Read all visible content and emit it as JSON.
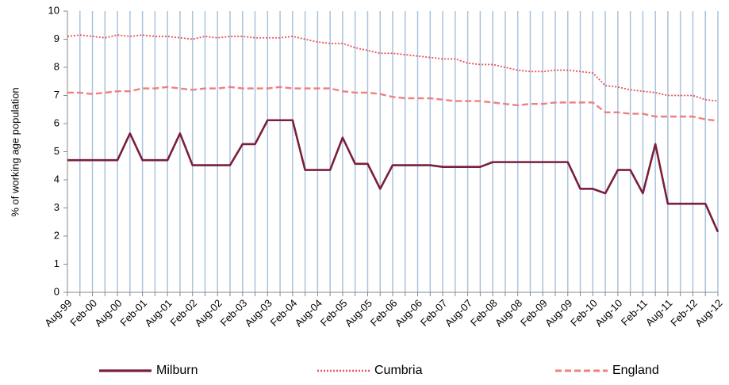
{
  "chart_data": {
    "type": "line",
    "ylabel": "% of working age population",
    "categories": [
      "Aug-99",
      null,
      "Feb-00",
      null,
      "Aug-00",
      null,
      "Feb-01",
      null,
      "Aug-01",
      null,
      "Feb-02",
      null,
      "Aug-02",
      null,
      "Feb-03",
      null,
      "Aug-03",
      null,
      "Feb-04",
      null,
      "Aug-04",
      null,
      "Feb-05",
      null,
      "Aug-05",
      null,
      "Feb-06",
      null,
      "Aug-06",
      null,
      "Feb-07",
      null,
      "Aug-07",
      null,
      "Feb-08",
      null,
      "Aug-08",
      null,
      "Feb-09",
      null,
      "Aug-09",
      null,
      "Feb-10",
      null,
      "Aug-10",
      null,
      "Feb-11",
      null,
      "Aug-11",
      null,
      "Feb-12",
      null,
      "Aug-12"
    ],
    "series": [
      {
        "name": "Milburn",
        "color": "#7b1f3a",
        "dash": "solid",
        "values": [
          4.7,
          4.7,
          4.7,
          4.7,
          4.7,
          5.65,
          4.7,
          4.7,
          4.7,
          5.65,
          4.52,
          4.52,
          4.52,
          4.52,
          5.27,
          5.27,
          6.12,
          6.12,
          6.12,
          4.35,
          4.35,
          4.35,
          5.5,
          4.57,
          4.57,
          3.68,
          4.52,
          4.52,
          4.52,
          4.52,
          4.46,
          4.46,
          4.46,
          4.46,
          4.63,
          4.63,
          4.63,
          4.63,
          4.63,
          4.63,
          4.63,
          3.68,
          3.68,
          3.52,
          4.35,
          4.35,
          3.52,
          5.27,
          3.15,
          3.15,
          3.15,
          3.15,
          2.15
        ]
      },
      {
        "name": "Cumbria",
        "color": "#e8505b",
        "dash": "dotted",
        "values": [
          9.1,
          9.15,
          9.1,
          9.05,
          9.15,
          9.1,
          9.15,
          9.1,
          9.1,
          9.05,
          9.0,
          9.1,
          9.05,
          9.1,
          9.1,
          9.05,
          9.05,
          9.05,
          9.1,
          9.0,
          8.9,
          8.85,
          8.85,
          8.7,
          8.6,
          8.5,
          8.5,
          8.45,
          8.4,
          8.35,
          8.3,
          8.3,
          8.15,
          8.1,
          8.1,
          8.0,
          7.9,
          7.85,
          7.85,
          7.9,
          7.9,
          7.85,
          7.8,
          7.35,
          7.3,
          7.2,
          7.15,
          7.1,
          7.0,
          7.0,
          7.0,
          6.85,
          6.8
        ]
      },
      {
        "name": "England",
        "color": "#f08080",
        "dash": "dashed",
        "values": [
          7.1,
          7.1,
          7.05,
          7.1,
          7.15,
          7.15,
          7.25,
          7.25,
          7.3,
          7.25,
          7.2,
          7.25,
          7.25,
          7.3,
          7.25,
          7.25,
          7.25,
          7.3,
          7.25,
          7.25,
          7.25,
          7.25,
          7.15,
          7.1,
          7.1,
          7.05,
          6.95,
          6.9,
          6.9,
          6.9,
          6.85,
          6.8,
          6.8,
          6.8,
          6.75,
          6.7,
          6.65,
          6.7,
          6.7,
          6.75,
          6.75,
          6.75,
          6.75,
          6.4,
          6.4,
          6.35,
          6.35,
          6.25,
          6.25,
          6.25,
          6.25,
          6.15,
          6.1
        ]
      }
    ],
    "ylim": [
      0,
      10
    ],
    "yticks": [
      0,
      1,
      2,
      3,
      4,
      5,
      6,
      7,
      8,
      9,
      10
    ],
    "x_grid": true,
    "legend": "bottom"
  }
}
